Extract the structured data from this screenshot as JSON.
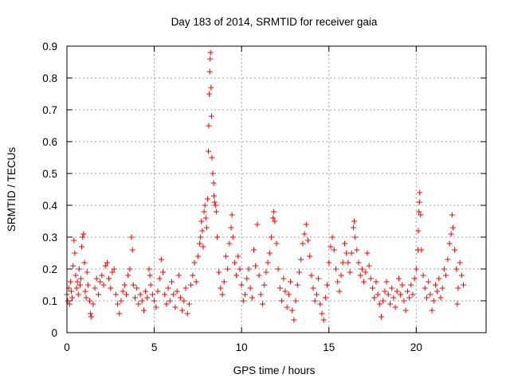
{
  "chart_data": {
    "type": "scatter",
    "title": "Day 183 of 2014, SRMTID for receiver gaia",
    "xlabel": "GPS time / hours",
    "ylabel": "SRMTID / TECUs",
    "xlim": [
      0,
      24
    ],
    "ylim": [
      0,
      0.9
    ],
    "xticks": [
      0,
      5,
      10,
      15,
      20
    ],
    "yticks": [
      0,
      0.1,
      0.2,
      0.3,
      0.4,
      0.5,
      0.6,
      0.7,
      0.8,
      0.9
    ],
    "xtick_labels": [
      "0",
      "5",
      "10",
      "15",
      "20"
    ],
    "ytick_labels": [
      "0",
      "0.1",
      "0.2",
      "0.3",
      "0.4",
      "0.5",
      "0.6",
      "0.7",
      "0.8",
      "0.9"
    ],
    "grid": true,
    "marker": "+",
    "marker_color": "#ff0000",
    "series": [
      {
        "name": "gaia",
        "points": [
          [
            0.0,
            0.12
          ],
          [
            0.05,
            0.1
          ],
          [
            0.1,
            0.14
          ],
          [
            0.15,
            0.09
          ],
          [
            0.2,
            0.16
          ],
          [
            0.25,
            0.13
          ],
          [
            0.3,
            0.11
          ],
          [
            0.35,
            0.21
          ],
          [
            0.4,
            0.29
          ],
          [
            0.45,
            0.25
          ],
          [
            0.5,
            0.18
          ],
          [
            0.55,
            0.14
          ],
          [
            0.6,
            0.16
          ],
          [
            0.65,
            0.12
          ],
          [
            0.7,
            0.2
          ],
          [
            0.75,
            0.15
          ],
          [
            0.8,
            0.17
          ],
          [
            0.85,
            0.27
          ],
          [
            0.9,
            0.3
          ],
          [
            0.95,
            0.31
          ],
          [
            1.0,
            0.22
          ],
          [
            1.05,
            0.13
          ],
          [
            1.1,
            0.11
          ],
          [
            1.15,
            0.19
          ],
          [
            1.2,
            0.15
          ],
          [
            1.3,
            0.1
          ],
          [
            1.35,
            0.06
          ],
          [
            1.4,
            0.05
          ],
          [
            1.5,
            0.09
          ],
          [
            1.6,
            0.14
          ],
          [
            1.7,
            0.17
          ],
          [
            1.8,
            0.12
          ],
          [
            1.9,
            0.16
          ],
          [
            2.0,
            0.18
          ],
          [
            2.1,
            0.15
          ],
          [
            2.2,
            0.21
          ],
          [
            2.3,
            0.22
          ],
          [
            2.4,
            0.17
          ],
          [
            2.5,
            0.14
          ],
          [
            2.6,
            0.19
          ],
          [
            2.7,
            0.2
          ],
          [
            2.8,
            0.12
          ],
          [
            2.9,
            0.09
          ],
          [
            3.0,
            0.06
          ],
          [
            3.1,
            0.1
          ],
          [
            3.2,
            0.13
          ],
          [
            3.3,
            0.15
          ],
          [
            3.4,
            0.12
          ],
          [
            3.5,
            0.18
          ],
          [
            3.6,
            0.2
          ],
          [
            3.7,
            0.3
          ],
          [
            3.75,
            0.26
          ],
          [
            3.8,
            0.15
          ],
          [
            3.9,
            0.11
          ],
          [
            4.0,
            0.14
          ],
          [
            4.1,
            0.09
          ],
          [
            4.2,
            0.12
          ],
          [
            4.3,
            0.1
          ],
          [
            4.4,
            0.07
          ],
          [
            4.5,
            0.13
          ],
          [
            4.6,
            0.11
          ],
          [
            4.7,
            0.2
          ],
          [
            4.75,
            0.18
          ],
          [
            4.8,
            0.15
          ],
          [
            4.9,
            0.12
          ],
          [
            5.0,
            0.1
          ],
          [
            5.1,
            0.08
          ],
          [
            5.2,
            0.13
          ],
          [
            5.3,
            0.17
          ],
          [
            5.4,
            0.23
          ],
          [
            5.5,
            0.19
          ],
          [
            5.6,
            0.12
          ],
          [
            5.7,
            0.09
          ],
          [
            5.8,
            0.14
          ],
          [
            5.9,
            0.1
          ],
          [
            6.0,
            0.16
          ],
          [
            6.1,
            0.12
          ],
          [
            6.2,
            0.08
          ],
          [
            6.3,
            0.13
          ],
          [
            6.4,
            0.18
          ],
          [
            6.5,
            0.11
          ],
          [
            6.6,
            0.07
          ],
          [
            6.7,
            0.1
          ],
          [
            6.8,
            0.14
          ],
          [
            6.9,
            0.06
          ],
          [
            7.0,
            0.09
          ],
          [
            7.1,
            0.15
          ],
          [
            7.2,
            0.18
          ],
          [
            7.3,
            0.22
          ],
          [
            7.4,
            0.16
          ],
          [
            7.5,
            0.24
          ],
          [
            7.6,
            0.28
          ],
          [
            7.65,
            0.3
          ],
          [
            7.7,
            0.35
          ],
          [
            7.75,
            0.32
          ],
          [
            7.8,
            0.27
          ],
          [
            7.85,
            0.38
          ],
          [
            7.9,
            0.4
          ],
          [
            7.95,
            0.36
          ],
          [
            8.0,
            0.33
          ],
          [
            8.05,
            0.42
          ],
          [
            8.1,
            0.57
          ],
          [
            8.12,
            0.65
          ],
          [
            8.15,
            0.75
          ],
          [
            8.18,
            0.82
          ],
          [
            8.2,
            0.86
          ],
          [
            8.22,
            0.88
          ],
          [
            8.25,
            0.77
          ],
          [
            8.28,
            0.68
          ],
          [
            8.3,
            0.55
          ],
          [
            8.35,
            0.5
          ],
          [
            8.4,
            0.47
          ],
          [
            8.42,
            0.43
          ],
          [
            8.45,
            0.41
          ],
          [
            8.5,
            0.4
          ],
          [
            8.55,
            0.38
          ],
          [
            8.6,
            0.3
          ],
          [
            8.7,
            0.19
          ],
          [
            8.8,
            0.14
          ],
          [
            8.9,
            0.12
          ],
          [
            9.0,
            0.16
          ],
          [
            9.1,
            0.24
          ],
          [
            9.2,
            0.2
          ],
          [
            9.3,
            0.28
          ],
          [
            9.4,
            0.33
          ],
          [
            9.45,
            0.37
          ],
          [
            9.5,
            0.3
          ],
          [
            9.6,
            0.22
          ],
          [
            9.7,
            0.18
          ],
          [
            9.8,
            0.24
          ],
          [
            9.9,
            0.2
          ],
          [
            10.0,
            0.15
          ],
          [
            10.1,
            0.1
          ],
          [
            10.2,
            0.12
          ],
          [
            10.3,
            0.17
          ],
          [
            10.4,
            0.2
          ],
          [
            10.5,
            0.14
          ],
          [
            10.6,
            0.11
          ],
          [
            10.7,
            0.26
          ],
          [
            10.8,
            0.21
          ],
          [
            10.9,
            0.34
          ],
          [
            11.0,
            0.18
          ],
          [
            11.1,
            0.12
          ],
          [
            11.2,
            0.09
          ],
          [
            11.3,
            0.15
          ],
          [
            11.4,
            0.19
          ],
          [
            11.5,
            0.22
          ],
          [
            11.6,
            0.25
          ],
          [
            11.7,
            0.3
          ],
          [
            11.8,
            0.36
          ],
          [
            11.85,
            0.38
          ],
          [
            11.9,
            0.35
          ],
          [
            12.0,
            0.28
          ],
          [
            12.1,
            0.2
          ],
          [
            12.2,
            0.14
          ],
          [
            12.3,
            0.1
          ],
          [
            12.4,
            0.17
          ],
          [
            12.5,
            0.13
          ],
          [
            12.6,
            0.08
          ],
          [
            12.7,
            0.12
          ],
          [
            12.8,
            0.16
          ],
          [
            12.9,
            0.07
          ],
          [
            13.0,
            0.04
          ],
          [
            13.1,
            0.1
          ],
          [
            13.2,
            0.15
          ],
          [
            13.3,
            0.19
          ],
          [
            13.4,
            0.23
          ],
          [
            13.5,
            0.28
          ],
          [
            13.6,
            0.31
          ],
          [
            13.7,
            0.34
          ],
          [
            13.8,
            0.29
          ],
          [
            13.9,
            0.24
          ],
          [
            14.0,
            0.18
          ],
          [
            14.1,
            0.14
          ],
          [
            14.2,
            0.1
          ],
          [
            14.3,
            0.12
          ],
          [
            14.4,
            0.17
          ],
          [
            14.5,
            0.09
          ],
          [
            14.6,
            0.06
          ],
          [
            14.7,
            0.04
          ],
          [
            14.8,
            0.11
          ],
          [
            14.9,
            0.15
          ],
          [
            15.0,
            0.22
          ],
          [
            15.1,
            0.27
          ],
          [
            15.2,
            0.3
          ],
          [
            15.3,
            0.26
          ],
          [
            15.4,
            0.2
          ],
          [
            15.5,
            0.16
          ],
          [
            15.6,
            0.13
          ],
          [
            15.7,
            0.18
          ],
          [
            15.8,
            0.22
          ],
          [
            15.9,
            0.28
          ],
          [
            16.0,
            0.25
          ],
          [
            16.1,
            0.22
          ],
          [
            16.2,
            0.19
          ],
          [
            16.3,
            0.25
          ],
          [
            16.4,
            0.33
          ],
          [
            16.45,
            0.35
          ],
          [
            16.5,
            0.3
          ],
          [
            16.6,
            0.26
          ],
          [
            16.7,
            0.22
          ],
          [
            16.8,
            0.18
          ],
          [
            16.9,
            0.2
          ],
          [
            17.0,
            0.16
          ],
          [
            17.1,
            0.19
          ],
          [
            17.2,
            0.25
          ],
          [
            17.3,
            0.21
          ],
          [
            17.4,
            0.17
          ],
          [
            17.5,
            0.14
          ],
          [
            17.6,
            0.11
          ],
          [
            17.7,
            0.16
          ],
          [
            17.8,
            0.12
          ],
          [
            17.9,
            0.09
          ],
          [
            18.0,
            0.05
          ],
          [
            18.1,
            0.1
          ],
          [
            18.2,
            0.13
          ],
          [
            18.3,
            0.16
          ],
          [
            18.4,
            0.12
          ],
          [
            18.5,
            0.09
          ],
          [
            18.6,
            0.14
          ],
          [
            18.7,
            0.11
          ],
          [
            18.8,
            0.08
          ],
          [
            18.9,
            0.13
          ],
          [
            19.0,
            0.17
          ],
          [
            19.1,
            0.12
          ],
          [
            19.2,
            0.15
          ],
          [
            19.3,
            0.1
          ],
          [
            19.4,
            0.07
          ],
          [
            19.5,
            0.13
          ],
          [
            19.6,
            0.11
          ],
          [
            19.7,
            0.15
          ],
          [
            19.8,
            0.12
          ],
          [
            19.9,
            0.17
          ],
          [
            20.0,
            0.2
          ],
          [
            20.1,
            0.26
          ],
          [
            20.12,
            0.32
          ],
          [
            20.15,
            0.38
          ],
          [
            20.18,
            0.41
          ],
          [
            20.2,
            0.44
          ],
          [
            20.25,
            0.37
          ],
          [
            20.3,
            0.26
          ],
          [
            20.4,
            0.18
          ],
          [
            20.5,
            0.14
          ],
          [
            20.6,
            0.11
          ],
          [
            20.7,
            0.16
          ],
          [
            20.8,
            0.12
          ],
          [
            20.9,
            0.07
          ],
          [
            21.0,
            0.1
          ],
          [
            21.1,
            0.15
          ],
          [
            21.2,
            0.13
          ],
          [
            21.3,
            0.17
          ],
          [
            21.4,
            0.11
          ],
          [
            21.5,
            0.14
          ],
          [
            21.6,
            0.2
          ],
          [
            21.7,
            0.18
          ],
          [
            21.8,
            0.23
          ],
          [
            21.9,
            0.28
          ],
          [
            22.0,
            0.31
          ],
          [
            22.05,
            0.37
          ],
          [
            22.1,
            0.33
          ],
          [
            22.2,
            0.26
          ],
          [
            22.3,
            0.2
          ],
          [
            22.35,
            0.09
          ],
          [
            22.4,
            0.14
          ],
          [
            22.5,
            0.22
          ],
          [
            22.6,
            0.18
          ],
          [
            22.7,
            0.15
          ]
        ]
      }
    ]
  }
}
